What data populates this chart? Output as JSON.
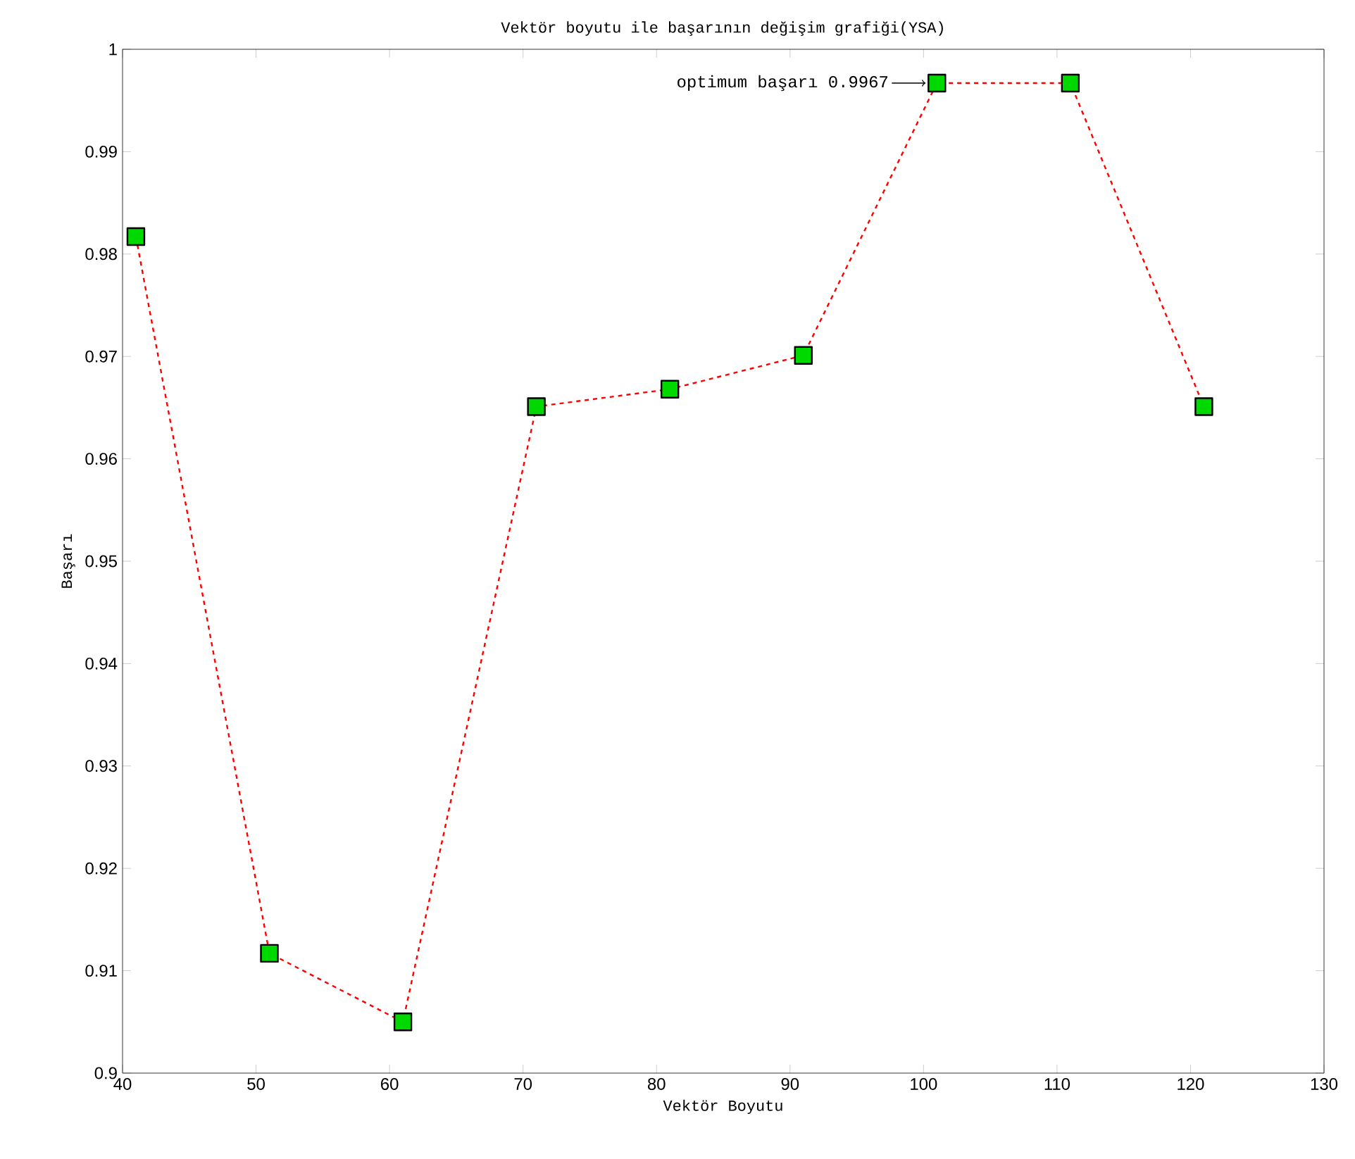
{
  "chart_data": {
    "type": "line",
    "title": "Vektör boyutu ile başarının değişim grafiği(YSA)",
    "xlabel": "Vektör Boyutu",
    "ylabel": "Başarı",
    "x": [
      41,
      51,
      61,
      71,
      81,
      91,
      101,
      111,
      121
    ],
    "series": [
      {
        "color": "#ff0000",
        "values": [
          0.9817,
          0.9117,
          0.905,
          0.9651,
          0.9668,
          0.9701,
          0.9967,
          0.9967,
          0.9651
        ]
      }
    ],
    "marker": "square",
    "line_style": "dashed",
    "grid": false,
    "xlim": [
      40,
      130
    ],
    "ylim": [
      0.9,
      1
    ],
    "xticks": [
      40,
      50,
      60,
      70,
      80,
      90,
      100,
      110,
      120,
      130
    ],
    "yticks": [
      0.9,
      0.91,
      0.92,
      0.93,
      0.94,
      0.95,
      0.96,
      0.97,
      0.98,
      0.99,
      1
    ],
    "annotations": [
      {
        "text": "optimum başarı 0.9967",
        "x": 101,
        "y": 0.9967
      }
    ]
  }
}
